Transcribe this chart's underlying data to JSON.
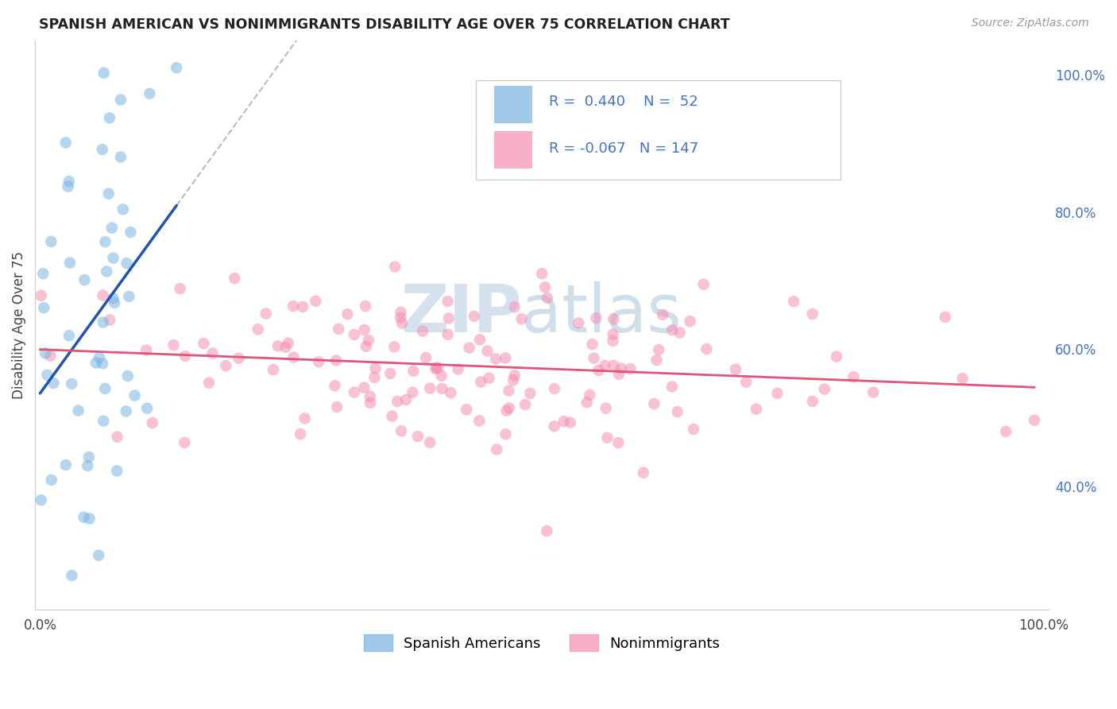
{
  "title": "SPANISH AMERICAN VS NONIMMIGRANTS DISABILITY AGE OVER 75 CORRELATION CHART",
  "source": "Source: ZipAtlas.com",
  "ylabel": "Disability Age Over 75",
  "legend_title_blue": "Spanish Americans",
  "legend_title_pink": "Nonimmigrants",
  "blue_color": "#7ab3e0",
  "pink_color": "#f48fb1",
  "blue_line_color": "#2255aa",
  "pink_line_color": "#e05575",
  "watermark_zip": "ZIP",
  "watermark_atlas": "atlas",
  "R_blue": 0.44,
  "N_blue": 52,
  "R_pink": -0.067,
  "N_pink": 147,
  "xlim": [
    0.0,
    1.0
  ],
  "ylim": [
    0.22,
    1.05
  ],
  "right_yticks": [
    1.0,
    0.8,
    0.6,
    0.4
  ],
  "right_yticklabels": [
    "100.0%",
    "80.0%",
    "60.0%",
    "40.0%"
  ],
  "bg_color": "#ffffff",
  "grid_color": "#cccccc",
  "legend_R1": "R =  0.440",
  "legend_N1": "N =  52",
  "legend_R2": "R = -0.067",
  "legend_N2": "N = 147"
}
